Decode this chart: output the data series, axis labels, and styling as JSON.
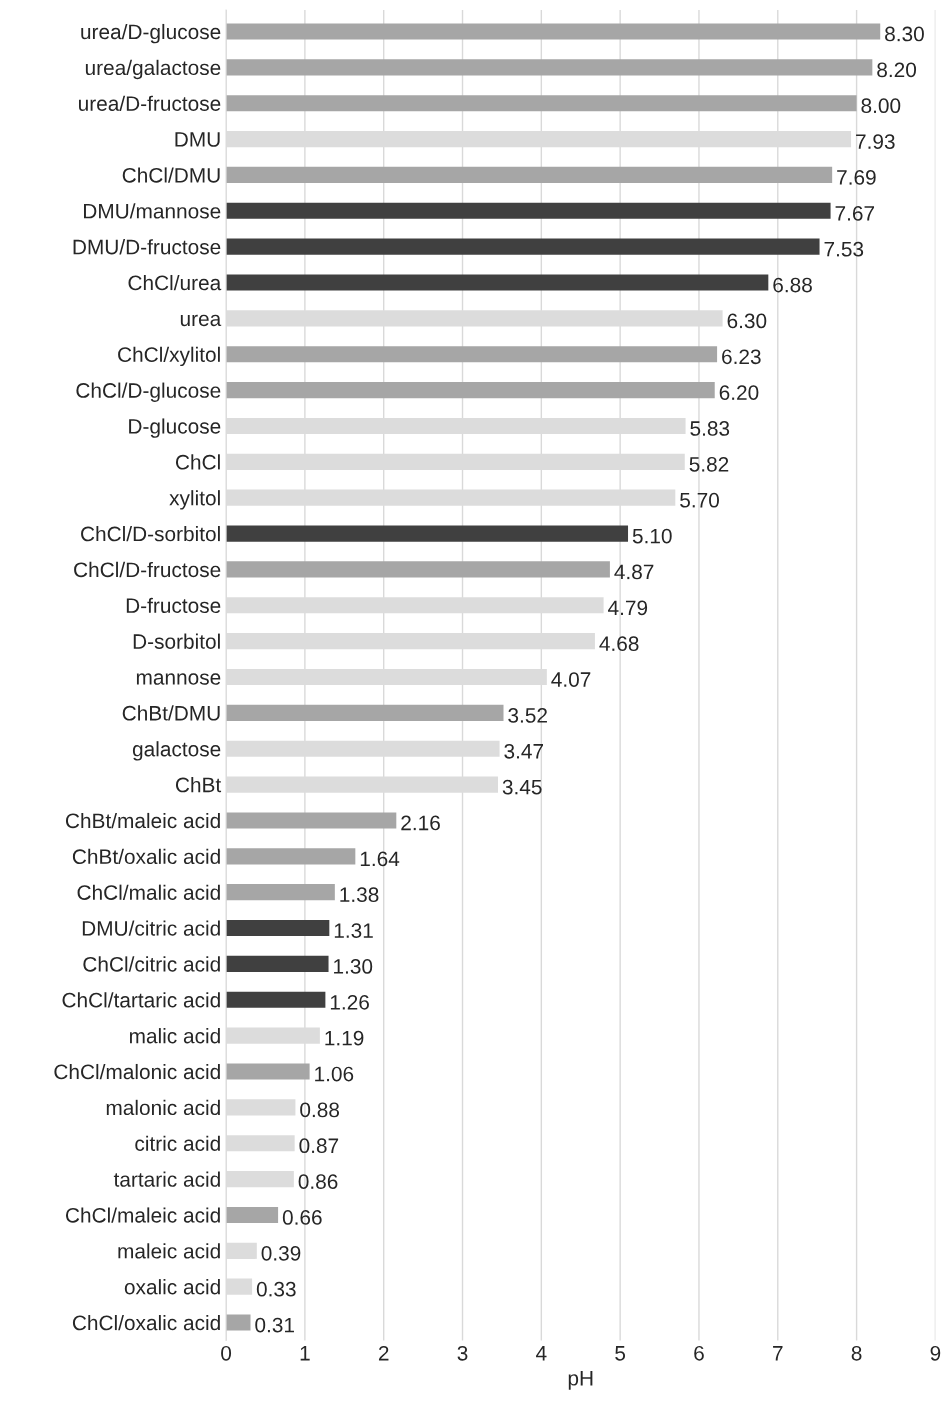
{
  "chart_data": {
    "type": "bar",
    "orientation": "horizontal",
    "xlabel": "pH",
    "categories": [
      "urea/D-glucose",
      "urea/galactose",
      "urea/D-fructose",
      "DMU",
      "ChCl/DMU",
      "DMU/mannose",
      "DMU/D-fructose",
      "ChCl/urea",
      "urea",
      "ChCl/xylitol",
      "ChCl/D-glucose",
      "D-glucose",
      "ChCl",
      "xylitol",
      "ChCl/D-sorbitol",
      "ChCl/D-fructose",
      "D-fructose",
      "D-sorbitol",
      "mannose",
      "ChBt/DMU",
      "galactose",
      "ChBt",
      "ChBt/maleic acid",
      "ChBt/oxalic acid",
      "ChCl/malic acid",
      "DMU/citric acid",
      "ChCl/citric acid",
      "ChCl/tartaric acid",
      "malic acid",
      "ChCl/malonic acid",
      "malonic acid",
      "citric acid",
      "tartaric acid",
      "ChCl/maleic acid",
      "maleic acid",
      "oxalic acid",
      "ChCl/oxalic acid"
    ],
    "values": [
      8.3,
      8.2,
      8.0,
      7.93,
      7.69,
      7.67,
      7.53,
      6.88,
      6.3,
      6.23,
      6.2,
      5.83,
      5.82,
      5.7,
      5.1,
      4.87,
      4.79,
      4.68,
      4.07,
      3.52,
      3.47,
      3.45,
      2.16,
      1.64,
      1.38,
      1.31,
      1.3,
      1.26,
      1.19,
      1.06,
      0.88,
      0.87,
      0.86,
      0.66,
      0.39,
      0.33,
      0.31
    ],
    "value_labels": [
      "8.30",
      "8.20",
      "8.00",
      "7.93",
      "7.69",
      "7.67",
      "7.53",
      "6.88",
      "6.30",
      "6.23",
      "6.20",
      "5.83",
      "5.82",
      "5.70",
      "5.10",
      "4.87",
      "4.79",
      "4.68",
      "4.07",
      "3.52",
      "3.47",
      "3.45",
      "2.16",
      "1.64",
      "1.38",
      "1.31",
      "1.30",
      "1.26",
      "1.19",
      "1.06",
      "0.88",
      "0.87",
      "0.86",
      "0.66",
      "0.39",
      "0.33",
      "0.31"
    ],
    "colors": [
      "#a6a6a6",
      "#a6a6a6",
      "#a6a6a6",
      "#dcdcdc",
      "#a6a6a6",
      "#404040",
      "#404040",
      "#404040",
      "#dcdcdc",
      "#a6a6a6",
      "#a6a6a6",
      "#dcdcdc",
      "#dcdcdc",
      "#dcdcdc",
      "#404040",
      "#a6a6a6",
      "#dcdcdc",
      "#dcdcdc",
      "#dcdcdc",
      "#a6a6a6",
      "#dcdcdc",
      "#dcdcdc",
      "#a6a6a6",
      "#a6a6a6",
      "#a6a6a6",
      "#404040",
      "#404040",
      "#404040",
      "#dcdcdc",
      "#a6a6a6",
      "#dcdcdc",
      "#dcdcdc",
      "#dcdcdc",
      "#a6a6a6",
      "#dcdcdc",
      "#dcdcdc",
      "#a6a6a6"
    ],
    "xlim": [
      0,
      9
    ],
    "xticks": [
      0,
      1,
      2,
      3,
      4,
      5,
      6,
      7,
      8,
      9
    ],
    "grid": "x"
  }
}
